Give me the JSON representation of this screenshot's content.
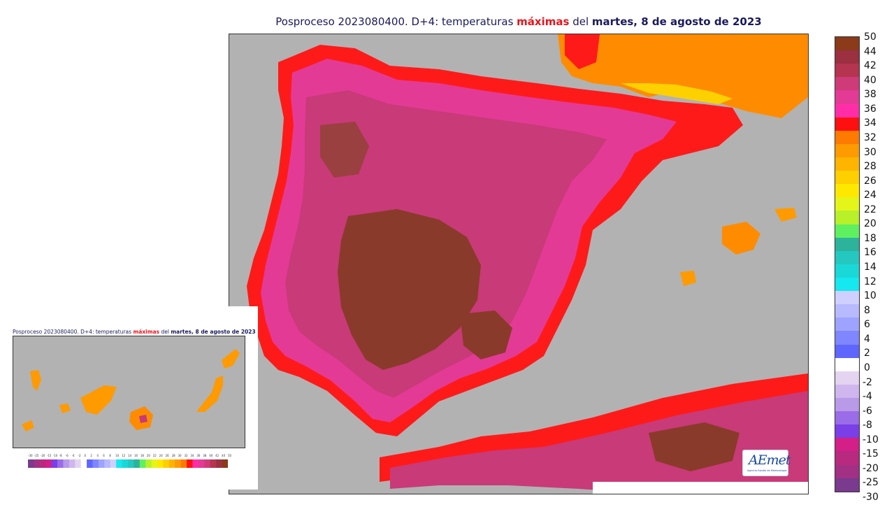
{
  "title": {
    "prefix": "Posproceso 2023080400. D+4: temperaturas ",
    "highlight": "máximas",
    "middle": " del ",
    "bold": "martes, 8 de agosto de 2023"
  },
  "inset": {
    "title_prefix": "Posproceso 2023080400. D+4: temperaturas ",
    "title_highlight": "máximas",
    "title_middle": " del ",
    "title_bold": "martes, 8 de agosto de 2023",
    "scale_labels": [
      "-30",
      "-25",
      "-20",
      "-15",
      "-10",
      "-8",
      "-6",
      "-4",
      "-2",
      "0",
      "2",
      "4",
      "6",
      "8",
      "10",
      "12",
      "14",
      "16",
      "18",
      "20",
      "22",
      "24",
      "26",
      "28",
      "30",
      "32",
      "34",
      "36",
      "38",
      "40",
      "42",
      "44",
      "50"
    ]
  },
  "colorbar": {
    "labels": [
      "50",
      "44",
      "42",
      "40",
      "38",
      "36",
      "34",
      "32",
      "30",
      "28",
      "26",
      "24",
      "22",
      "20",
      "18",
      "16",
      "14",
      "12",
      "10",
      "8",
      "6",
      "4",
      "2",
      "0",
      "-2",
      "-4",
      "-6",
      "-8",
      "-10",
      "-15",
      "-20",
      "-25",
      "-30"
    ],
    "colors": [
      "#8b3a1a",
      "#9a3040",
      "#b53450",
      "#cf3a78",
      "#e33a96",
      "#ff2ea8",
      "#ff1010",
      "#ff7a00",
      "#ff9a00",
      "#ffb400",
      "#ffcf00",
      "#ffe800",
      "#e5f51a",
      "#b8f02a",
      "#5ff060",
      "#2db39c",
      "#25c8c0",
      "#1ad8d8",
      "#15e8ef",
      "#cfd0ff",
      "#b8baff",
      "#9ea3ff",
      "#7f86ff",
      "#5f66ff",
      "#ffffff",
      "#e4d4f2",
      "#cfb6ee",
      "#b89ae8",
      "#9a6ce8",
      "#7a3fe6",
      "#d41f88",
      "#b82a80",
      "#a23084",
      "#7a3a8e"
    ],
    "unit_values_note": ""
  },
  "legend_colors": {
    "sea": "#b2b2b2",
    "hot_inland": "#8a3a2a",
    "very_hot": "#c83a78",
    "hot": "#f0409a",
    "coast_red": "#ff1a1a",
    "warm_orange": "#ff8c00",
    "mild_yellow": "#ffd000"
  },
  "logo": {
    "mark": "AEmet",
    "small": "Agencia Estatal de Meteorología"
  }
}
